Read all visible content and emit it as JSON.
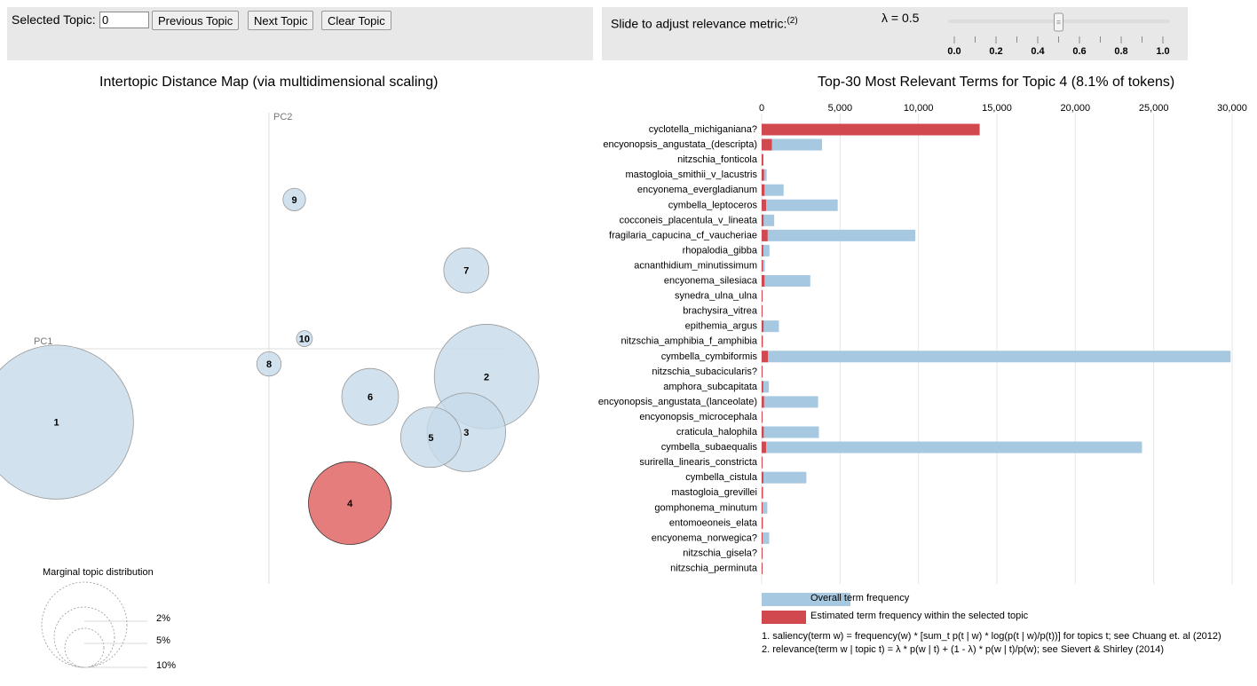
{
  "controls": {
    "selected_topic_label": "Selected Topic:",
    "selected_topic_value": "0",
    "prev_label": "Previous Topic",
    "next_label": "Next Topic",
    "clear_label": "Clear Topic"
  },
  "relevance": {
    "label": "Slide to adjust relevance metric:",
    "footnote": "(2)",
    "lambda_text": "λ = 0.5",
    "lambda": 0.5,
    "ticks": [
      "0.0",
      "0.2",
      "0.4",
      "0.6",
      "0.8",
      "1.0"
    ]
  },
  "map": {
    "title": "Intertopic Distance Map (via multidimensional scaling)",
    "pc1": "PC1",
    "pc2": "PC2",
    "selected_topic": 4,
    "topics": [
      {
        "id": "1",
        "pc1": -0.42,
        "pc2": -0.145,
        "size": 28.0
      },
      {
        "id": "2",
        "pc1": 0.43,
        "pc2": -0.055,
        "size": 12.9
      },
      {
        "id": "3",
        "pc1": 0.39,
        "pc2": -0.165,
        "size": 7.3
      },
      {
        "id": "4",
        "pc1": 0.16,
        "pc2": -0.305,
        "size": 8.1
      },
      {
        "id": "5",
        "pc1": 0.32,
        "pc2": -0.175,
        "size": 4.3
      },
      {
        "id": "6",
        "pc1": 0.2,
        "pc2": -0.095,
        "size": 3.8
      },
      {
        "id": "7",
        "pc1": 0.39,
        "pc2": 0.155,
        "size": 2.4
      },
      {
        "id": "8",
        "pc1": 0.0,
        "pc2": -0.03,
        "size": 0.7
      },
      {
        "id": "9",
        "pc1": 0.05,
        "pc2": 0.295,
        "size": 0.6
      },
      {
        "id": "10",
        "pc1": 0.07,
        "pc2": 0.02,
        "size": 0.3
      }
    ],
    "marginal_title": "Marginal topic distribution",
    "marginal_labels": [
      "2%",
      "5%",
      "10%"
    ]
  },
  "chart_data": {
    "type": "bar",
    "title": "Top-30 Most Relevant Terms for Topic 4 (8.1% of tokens)",
    "xlim": [
      0,
      30000
    ],
    "ticks": [
      "0",
      "5,000",
      "10,000",
      "15,000",
      "20,000",
      "25,000",
      "30,000"
    ],
    "tick_values": [
      0,
      5000,
      10000,
      15000,
      20000,
      25000,
      30000
    ],
    "categories": [
      "cyclotella_michiganiana?",
      "encyonopsis_angustata_(descripta)",
      "nitzschia_fonticola",
      "mastogloia_smithii_v_lacustris",
      "encyonema_evergladianum",
      "cymbella_leptoceros",
      "cocconeis_placentula_v_lineata",
      "fragilaria_capucina_cf_vaucheriae",
      "rhopalodia_gibba",
      "acnanthidium_minutissimum",
      "encyonema_silesiaca",
      "synedra_ulna_ulna",
      "brachysira_vitrea",
      "epithemia_argus",
      "nitzschia_amphibia_f_amphibia",
      "cymbella_cymbiformis",
      "nitzschia_subacicularis?",
      "amphora_subcapitata",
      "encyonopsis_angustata_(lanceolate)",
      "encyonopsis_microcephala",
      "craticula_halophila",
      "cymbella_subaequalis",
      "surirella_linearis_constricta",
      "cymbella_cistula",
      "mastogloia_grevillei",
      "gomphonema_minutum",
      "entomoeoneis_elata",
      "encyonema_norwegica?",
      "nitzschia_gisela?",
      "nitzschia_perminuta"
    ],
    "series": [
      {
        "name": "Overall term frequency",
        "color": "#a6c8e0",
        "values": [
          13900,
          3850,
          120,
          320,
          1400,
          4850,
          800,
          9800,
          500,
          200,
          3100,
          40,
          40,
          1100,
          100,
          29900,
          40,
          460,
          3600,
          40,
          3650,
          24250,
          40,
          2850,
          130,
          360,
          100,
          480,
          30,
          30
        ]
      },
      {
        "name": "Estimated term frequency within the selected topic",
        "color": "#d1494f",
        "values": [
          13900,
          650,
          100,
          150,
          180,
          280,
          120,
          380,
          100,
          80,
          180,
          30,
          30,
          120,
          60,
          400,
          30,
          100,
          150,
          30,
          130,
          280,
          30,
          110,
          60,
          60,
          50,
          60,
          20,
          20
        ]
      }
    ]
  },
  "legend": {
    "overall": "Overall term frequency",
    "estimated": "Estimated term frequency within the selected topic"
  },
  "notes": {
    "note1": "1. saliency(term w) = frequency(w) * [sum_t p(t | w) * log(p(t | w)/p(t))] for topics t; see Chuang et. al (2012)",
    "note2": "2. relevance(term w | topic t) = λ * p(w | t) + (1 - λ) * p(w | t)/p(w); see Sievert & Shirley (2014)"
  },
  "colors": {
    "topic_default": "#c6dbea",
    "topic_selected": "#e06666",
    "overall_bar": "#a6c8e0",
    "topic_bar": "#d1494f",
    "panel_bg": "#e8e8e8"
  }
}
